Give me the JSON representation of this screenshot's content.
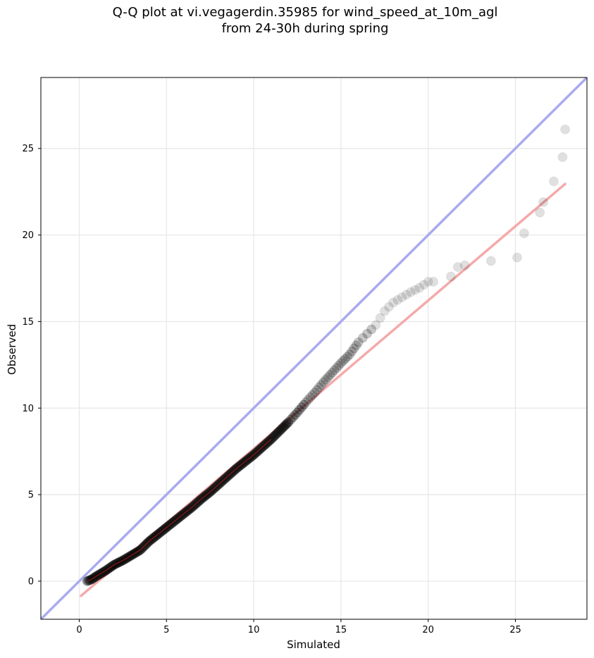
{
  "chart_data": {
    "type": "scatter",
    "title": "Q-Q plot at vi.vegagerdin.35985 for wind_speed_at_10m_agl\nfrom 24-30h during spring",
    "xlabel": "Simulated",
    "ylabel": "Observed",
    "xlim": [
      -2.2,
      29.1
    ],
    "ylim": [
      -2.2,
      29.1
    ],
    "x_ticks": [
      0,
      5,
      10,
      15,
      20,
      25
    ],
    "y_ticks": [
      0,
      5,
      10,
      15,
      20,
      25
    ],
    "grid": true,
    "reference_line": {
      "name": "1:1 line",
      "color": "#aaaaf0",
      "from": [
        -2.2,
        -2.2
      ],
      "to": [
        29.1,
        29.1
      ]
    },
    "fit_line": {
      "color": "#f4aaaa",
      "from": [
        0.1,
        -0.85
      ],
      "to": [
        27.85,
        22.95
      ]
    },
    "points_color": "#000000",
    "quantiles": [
      {
        "x": 0.45,
        "y": 0.0
      },
      {
        "x": 0.7,
        "y": 0.1
      },
      {
        "x": 1.0,
        "y": 0.3
      },
      {
        "x": 1.5,
        "y": 0.6
      },
      {
        "x": 2.0,
        "y": 0.95
      },
      {
        "x": 2.5,
        "y": 1.2
      },
      {
        "x": 3.0,
        "y": 1.5
      },
      {
        "x": 3.5,
        "y": 1.8
      },
      {
        "x": 4.0,
        "y": 2.3
      },
      {
        "x": 4.5,
        "y": 2.7
      },
      {
        "x": 5.0,
        "y": 3.1
      },
      {
        "x": 5.5,
        "y": 3.5
      },
      {
        "x": 6.0,
        "y": 3.9
      },
      {
        "x": 6.5,
        "y": 4.3
      },
      {
        "x": 7.0,
        "y": 4.75
      },
      {
        "x": 7.5,
        "y": 5.15
      },
      {
        "x": 8.0,
        "y": 5.6
      },
      {
        "x": 8.5,
        "y": 6.05
      },
      {
        "x": 9.0,
        "y": 6.5
      },
      {
        "x": 9.5,
        "y": 6.9
      },
      {
        "x": 10.0,
        "y": 7.3
      },
      {
        "x": 10.5,
        "y": 7.75
      },
      {
        "x": 11.0,
        "y": 8.2
      },
      {
        "x": 11.5,
        "y": 8.7
      },
      {
        "x": 12.0,
        "y": 9.2
      },
      {
        "x": 12.5,
        "y": 9.75
      },
      {
        "x": 13.0,
        "y": 10.35
      },
      {
        "x": 13.5,
        "y": 10.9
      },
      {
        "x": 14.0,
        "y": 11.5
      },
      {
        "x": 14.5,
        "y": 12.05
      },
      {
        "x": 15.0,
        "y": 12.6
      },
      {
        "x": 15.5,
        "y": 13.1
      },
      {
        "x": 16.0,
        "y": 13.8
      },
      {
        "x": 16.5,
        "y": 14.3
      },
      {
        "x": 17.0,
        "y": 14.8
      },
      {
        "x": 17.5,
        "y": 15.6
      },
      {
        "x": 18.0,
        "y": 16.1
      },
      {
        "x": 18.5,
        "y": 16.4
      },
      {
        "x": 19.0,
        "y": 16.7
      },
      {
        "x": 19.5,
        "y": 16.95
      },
      {
        "x": 20.0,
        "y": 17.3
      },
      {
        "x": 20.3,
        "y": 17.3
      },
      {
        "x": 21.3,
        "y": 17.6
      },
      {
        "x": 21.7,
        "y": 18.15
      },
      {
        "x": 22.1,
        "y": 18.25
      },
      {
        "x": 23.6,
        "y": 18.5
      },
      {
        "x": 25.1,
        "y": 18.7
      },
      {
        "x": 25.5,
        "y": 20.1
      },
      {
        "x": 26.4,
        "y": 21.3
      },
      {
        "x": 26.6,
        "y": 21.9
      },
      {
        "x": 27.2,
        "y": 23.1
      },
      {
        "x": 27.7,
        "y": 24.5
      },
      {
        "x": 27.85,
        "y": 26.1
      }
    ]
  }
}
